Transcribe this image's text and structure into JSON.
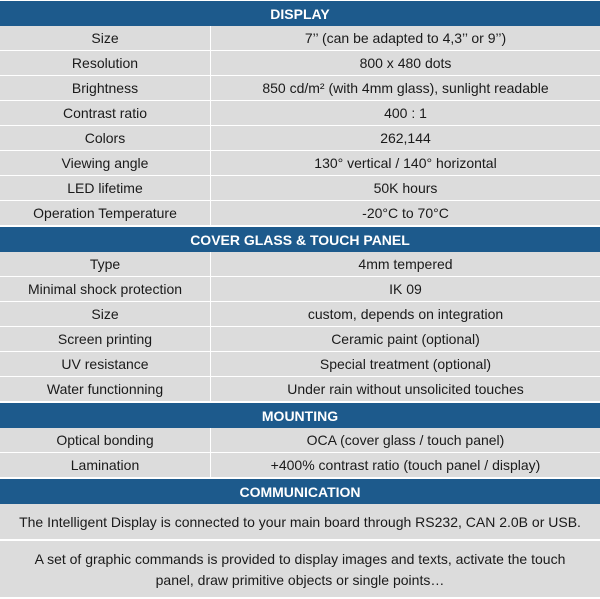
{
  "colors": {
    "header_bg": "#1d5a8c",
    "cell_bg": "#dcdcdc"
  },
  "sections": [
    {
      "title": "DISPLAY",
      "rows": [
        {
          "label": "Size",
          "value": "7’’ (can be adapted to 4,3’’ or 9’’)"
        },
        {
          "label": "Resolution",
          "value": "800 x 480 dots"
        },
        {
          "label": "Brightness",
          "value": "850 cd/m² (with 4mm glass), sunlight readable"
        },
        {
          "label": "Contrast ratio",
          "value": "400 : 1"
        },
        {
          "label": "Colors",
          "value": "262,144"
        },
        {
          "label": "Viewing angle",
          "value": "130° vertical / 140° horizontal"
        },
        {
          "label": "LED lifetime",
          "value": "50K hours"
        },
        {
          "label": "Operation Temperature",
          "value": "-20°C to 70°C"
        }
      ]
    },
    {
      "title": "COVER GLASS & TOUCH PANEL",
      "rows": [
        {
          "label": "Type",
          "value": "4mm tempered"
        },
        {
          "label": "Minimal shock protection",
          "value": "IK 09"
        },
        {
          "label": "Size",
          "value": "custom, depends on integration"
        },
        {
          "label": "Screen printing",
          "value": "Ceramic paint (optional)"
        },
        {
          "label": "UV resistance",
          "value": "Special treatment (optional)"
        },
        {
          "label": "Water functionning",
          "value": "Under rain without unsolicited touches"
        }
      ]
    },
    {
      "title": "MOUNTING",
      "rows": [
        {
          "label": "Optical bonding",
          "value": "OCA (cover glass / touch panel)"
        },
        {
          "label": "Lamination",
          "value": "+400% contrast ratio (touch panel / display)"
        }
      ]
    }
  ],
  "communication": {
    "title": "COMMUNICATION",
    "paragraphs": [
      "The Intelligent Display is connected to your main board through RS232, CAN 2.0B or USB.",
      "A set of graphic commands is provided to display images and texts, activate the touch panel, draw primitive objects or single points…"
    ]
  }
}
